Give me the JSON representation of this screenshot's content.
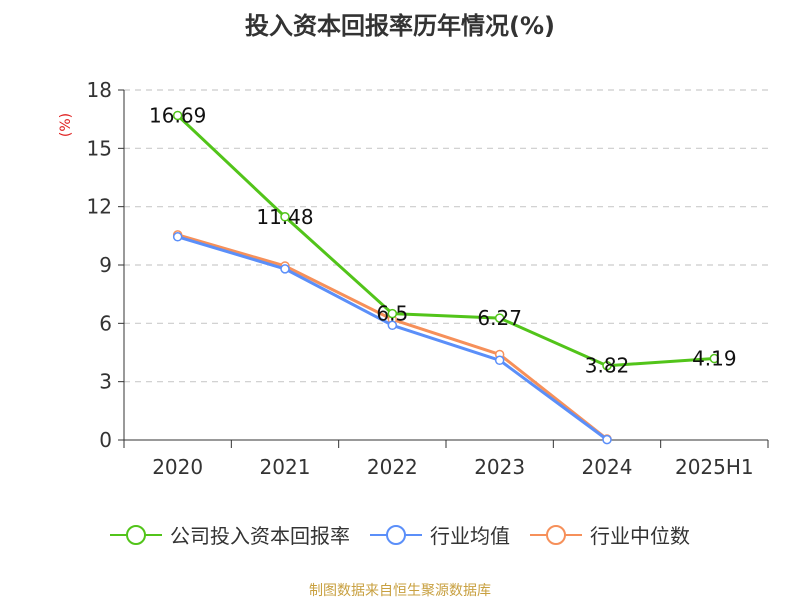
{
  "title": "投入资本回报率历年情况(%)",
  "source": "制图数据来自恒生聚源数据库",
  "colors": {
    "main": "#52c41a",
    "avg": "#5b8ff9",
    "median": "#f6905a"
  },
  "chart_data": {
    "type": "line",
    "title": "投入资本回报率历年情况(%)",
    "ylabel": "(%)",
    "xlabel": "",
    "categories": [
      "2020",
      "2021",
      "2022",
      "2023",
      "2024",
      "2025H1"
    ],
    "ylim": [
      0,
      18
    ],
    "yticks": [
      0,
      3,
      6,
      9,
      12,
      15,
      18
    ],
    "grid": true,
    "legend_position": "bottom",
    "series": [
      {
        "name": "公司投入资本回报率",
        "values": [
          16.69,
          11.48,
          6.5,
          6.27,
          3.82,
          4.19
        ],
        "labels": [
          "16.69",
          "11.48",
          "6.5",
          "6.27",
          "3.82",
          "4.19"
        ],
        "color": "#52c41a"
      },
      {
        "name": "行业均值",
        "values": [
          10.45,
          8.8,
          5.9,
          4.1,
          0.02,
          null
        ],
        "color": "#5b8ff9"
      },
      {
        "name": "行业中位数",
        "values": [
          10.55,
          8.95,
          6.2,
          4.4,
          0.05,
          null
        ],
        "color": "#f6905a"
      }
    ]
  }
}
